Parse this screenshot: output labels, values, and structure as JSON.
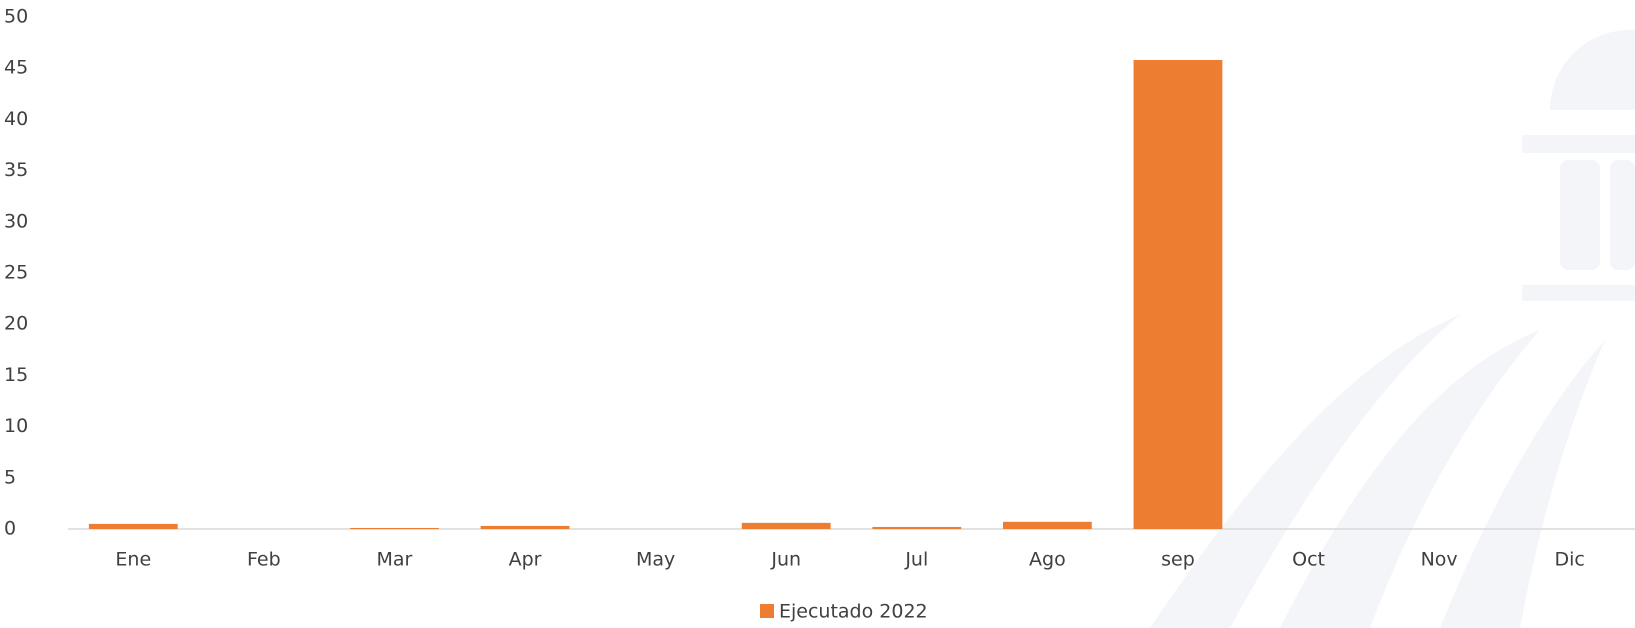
{
  "chart_data": {
    "type": "bar",
    "categories": [
      "Ene",
      "Feb",
      "Mar",
      "Apr",
      "May",
      "Jun",
      "Jul",
      "Ago",
      "sep",
      "Oct",
      "Nov",
      "Dic"
    ],
    "series": [
      {
        "name": "Ejecutado 2022",
        "color": "#ed7d31",
        "values": [
          0.5,
          0,
          0.1,
          0.3,
          0,
          0.6,
          0.2,
          0.7,
          45.8,
          null,
          null,
          null
        ]
      }
    ],
    "ylim": [
      0,
      50
    ],
    "yticks": [
      0,
      5,
      10,
      15,
      20,
      25,
      30,
      35,
      40,
      45,
      50
    ],
    "grid": false
  }
}
